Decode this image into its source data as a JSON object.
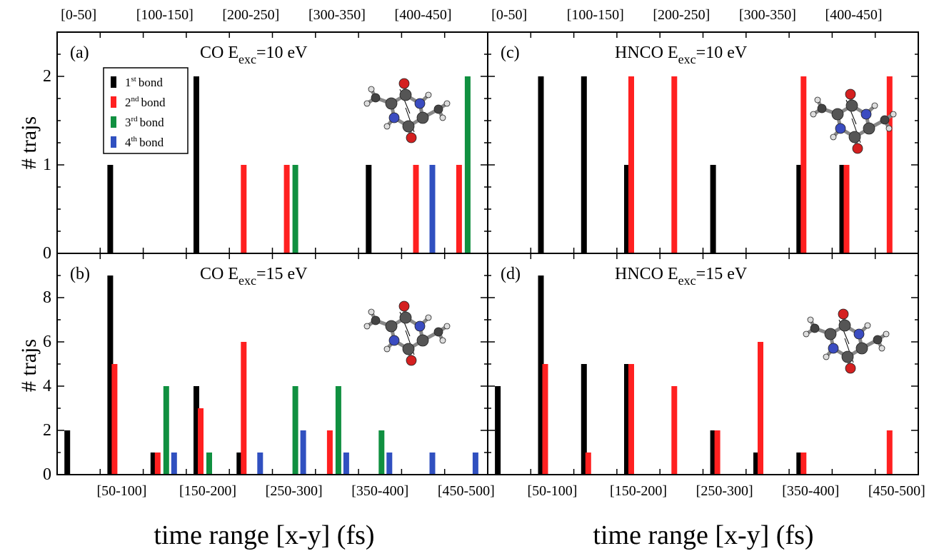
{
  "figure": {
    "xlabel_left": "time range [x-y] (fs)",
    "xlabel_right": "time range [x-y] (fs)",
    "ylabel_top": "# trajs",
    "ylabel_bottom": "# trajs"
  },
  "legend": {
    "items": [
      {
        "ord": "1",
        "sup": "st",
        "word": "bond",
        "color": "#000000"
      },
      {
        "ord": "2",
        "sup": "nd",
        "word": "bond",
        "color": "#ff2020"
      },
      {
        "ord": "3",
        "sup": "rd",
        "word": "bond",
        "color": "#109040"
      },
      {
        "ord": "4",
        "sup": "th",
        "word": "bond",
        "color": "#3050c0"
      }
    ]
  },
  "chart_data": [
    {
      "type": "bar",
      "panel": "(a)",
      "title_main": "CO  E",
      "title_sub": "exc",
      "title_tail": "=10 eV",
      "categories": [
        "[0-50]",
        "[50-100]",
        "[100-150]",
        "[150-200]",
        "[200-250]",
        "[250-300]",
        "[300-350]",
        "[350-400]",
        "[400-450]",
        "[450-500]"
      ],
      "ylim": [
        0,
        2.5
      ],
      "yticks": [
        0,
        1,
        2
      ],
      "series": [
        {
          "name": "1st bond",
          "color": "#000000",
          "values": [
            0,
            1,
            0,
            2,
            0,
            0,
            0,
            1,
            0,
            0
          ]
        },
        {
          "name": "2nd bond",
          "color": "#ff2020",
          "values": [
            0,
            0,
            0,
            0,
            1,
            1,
            0,
            0,
            1,
            1
          ]
        },
        {
          "name": "3rd bond",
          "color": "#109040",
          "values": [
            0,
            0,
            0,
            0,
            0,
            1,
            0,
            0,
            0,
            2
          ]
        },
        {
          "name": "4th bond",
          "color": "#3050c0",
          "values": [
            0,
            0,
            0,
            0,
            0,
            0,
            0,
            0,
            1,
            0
          ]
        }
      ]
    },
    {
      "type": "bar",
      "panel": "(b)",
      "title_main": "CO  E",
      "title_sub": "exc",
      "title_tail": "=15 eV",
      "categories": [
        "[0-50]",
        "[50-100]",
        "[100-150]",
        "[150-200]",
        "[200-250]",
        "[250-300]",
        "[300-350]",
        "[350-400]",
        "[400-450]",
        "[450-500]"
      ],
      "ylim": [
        0,
        10
      ],
      "yticks": [
        0,
        2,
        4,
        6,
        8
      ],
      "series": [
        {
          "name": "1st bond",
          "color": "#000000",
          "values": [
            2,
            9,
            1,
            4,
            1,
            0,
            0,
            0,
            0,
            0
          ]
        },
        {
          "name": "2nd bond",
          "color": "#ff2020",
          "values": [
            0,
            5,
            1,
            3,
            6,
            0,
            2,
            0,
            0,
            0
          ]
        },
        {
          "name": "3rd bond",
          "color": "#109040",
          "values": [
            0,
            0,
            4,
            1,
            0,
            4,
            4,
            2,
            0,
            0
          ]
        },
        {
          "name": "4th bond",
          "color": "#3050c0",
          "values": [
            0,
            0,
            1,
            0,
            1,
            2,
            1,
            1,
            1,
            1
          ]
        }
      ]
    },
    {
      "type": "bar",
      "panel": "(c)",
      "title_main": "HNCO  E",
      "title_sub": "exc",
      "title_tail": "=10 eV",
      "categories": [
        "[0-50]",
        "[50-100]",
        "[100-150]",
        "[150-200]",
        "[200-250]",
        "[250-300]",
        "[300-350]",
        "[350-400]",
        "[400-450]",
        "[450-500]"
      ],
      "ylim": [
        0,
        2.5
      ],
      "yticks": [
        0,
        1,
        2
      ],
      "series": [
        {
          "name": "1st bond",
          "color": "#000000",
          "values": [
            0,
            2,
            2,
            1,
            0,
            1,
            0,
            1,
            1,
            0
          ]
        },
        {
          "name": "2nd bond",
          "color": "#ff2020",
          "values": [
            0,
            0,
            0,
            2,
            2,
            0,
            0,
            2,
            1,
            2
          ]
        }
      ]
    },
    {
      "type": "bar",
      "panel": "(d)",
      "title_main": "HNCO  E",
      "title_sub": "exc",
      "title_tail": "=15 eV",
      "categories": [
        "[0-50]",
        "[50-100]",
        "[100-150]",
        "[150-200]",
        "[200-250]",
        "[250-300]",
        "[300-350]",
        "[350-400]",
        "[400-450]",
        "[450-500]"
      ],
      "ylim": [
        0,
        10
      ],
      "yticks": [
        0,
        2,
        4,
        6,
        8
      ],
      "series": [
        {
          "name": "1st bond",
          "color": "#000000",
          "values": [
            4,
            9,
            5,
            5,
            0,
            2,
            1,
            1,
            0,
            0
          ]
        },
        {
          "name": "2nd bond",
          "color": "#ff2020",
          "values": [
            0,
            5,
            1,
            5,
            4,
            2,
            6,
            1,
            0,
            2
          ]
        }
      ]
    }
  ],
  "top_axis_labels": [
    "[0-50]",
    "[100-150]",
    "[200-250]",
    "[300-350]",
    "[400-450]"
  ],
  "bottom_axis_labels": [
    "[50-100]",
    "[150-200]",
    "[250-300]",
    "[350-400]",
    "[450-500]"
  ]
}
